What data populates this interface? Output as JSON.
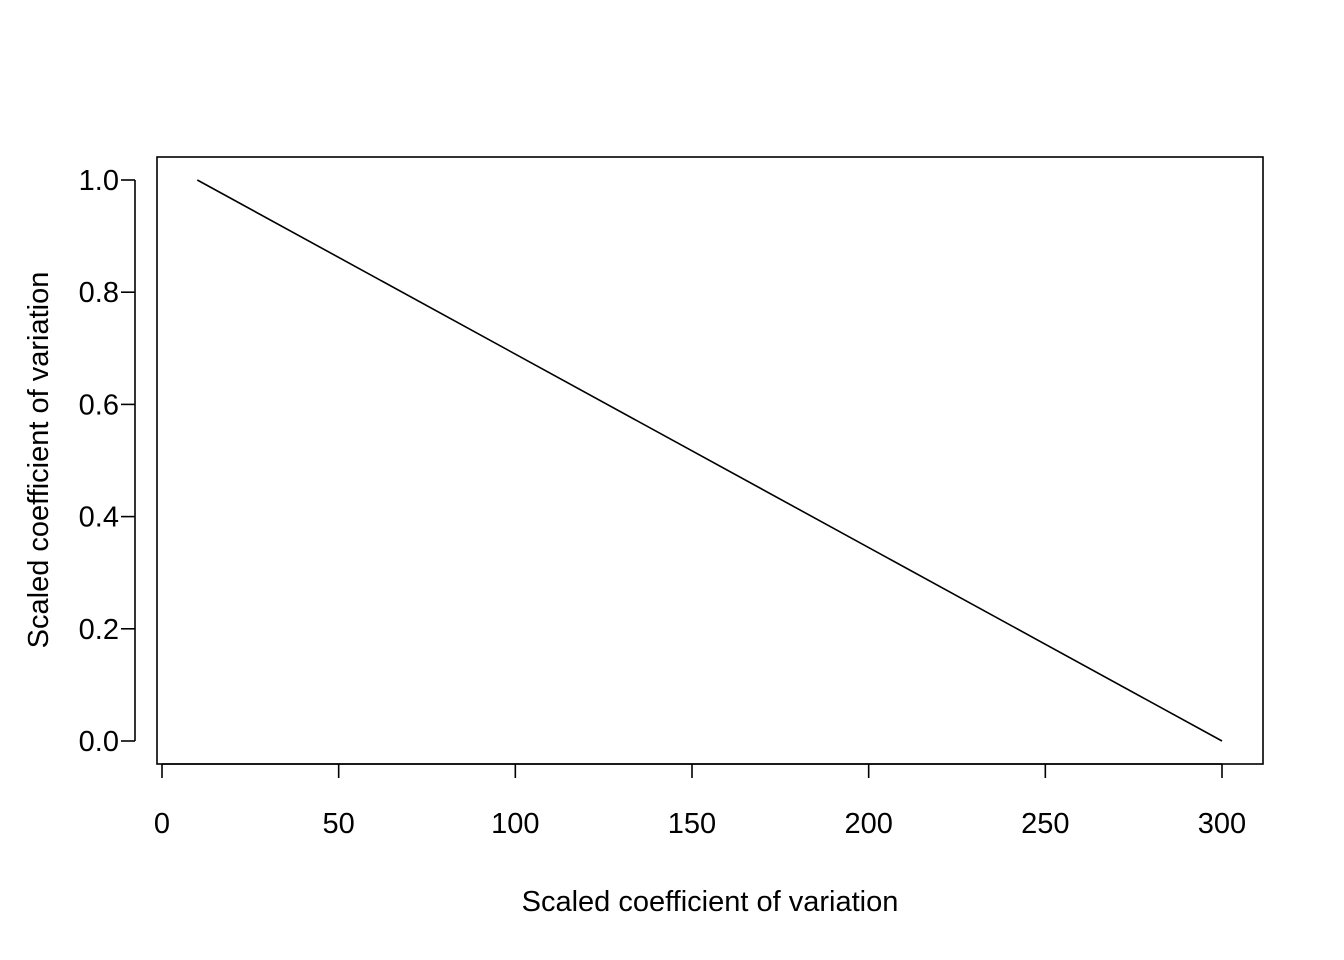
{
  "chart_data": {
    "type": "line",
    "title": "",
    "xlabel": "Scaled coefficient of variation",
    "ylabel": "Scaled coefficient of variation",
    "xlim": [
      0,
      300
    ],
    "ylim": [
      0,
      1
    ],
    "x_ticks": [
      "0",
      "50",
      "100",
      "150",
      "200",
      "250",
      "300"
    ],
    "y_ticks": [
      "0.0",
      "0.2",
      "0.4",
      "0.6",
      "0.8",
      "1.0"
    ],
    "grid": false,
    "legend": "none",
    "series": [
      {
        "color": "#000000",
        "x": [
          10,
          300
        ],
        "y": [
          1.0,
          0.0
        ]
      }
    ]
  }
}
